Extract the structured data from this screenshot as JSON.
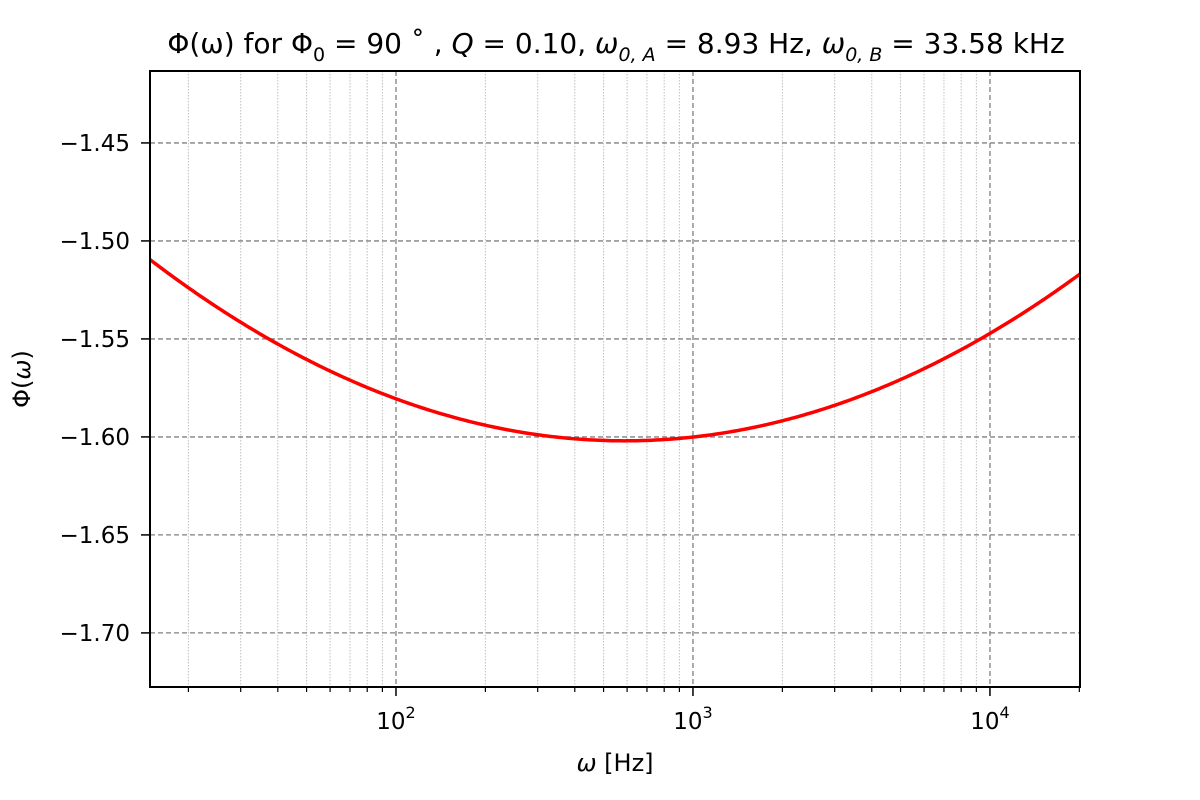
{
  "chart_data": {
    "type": "line",
    "title": "Φ(ω) for Φ₀ = 90°, Q = 0.10, ω₀,A = 8.93 Hz, ω₀,B = 33.58 kHz",
    "title_parts": {
      "lhs": "Φ(ω) for Φ",
      "phi0_sub": "0",
      "phi0_val": " = 90 ˚ , ",
      "q_label": "Q",
      "q_val": " = 0.10, ",
      "wA": "ω",
      "wA_sub": "0, A",
      "wA_val": " = 8.93 Hz, ",
      "wB": "ω",
      "wB_sub": "0, B",
      "wB_val": " = 33.58 kHz"
    },
    "xlabel": "ω [Hz]",
    "ylabel": "Φ(ω)",
    "xscale": "log",
    "xlim": [
      14.85,
      20100
    ],
    "ylim": [
      -1.7276,
      -1.4133
    ],
    "grid": true,
    "legend": null,
    "x_ticks": [
      {
        "value": 100,
        "base": "10",
        "exp": "2"
      },
      {
        "value": 1000,
        "base": "10",
        "exp": "3"
      },
      {
        "value": 10000,
        "base": "10",
        "exp": "4"
      }
    ],
    "y_ticks": [
      {
        "value": -1.45,
        "label": "−1.45"
      },
      {
        "value": -1.5,
        "label": "−1.50"
      },
      {
        "value": -1.55,
        "label": "−1.55"
      },
      {
        "value": -1.6,
        "label": "−1.60"
      },
      {
        "value": -1.65,
        "label": "−1.65"
      },
      {
        "value": -1.7,
        "label": "−1.70"
      }
    ],
    "series": [
      {
        "name": "Φ(ω)",
        "color": "#ff0000",
        "x": [
          14.85,
          20,
          30,
          50,
          70,
          100,
          150,
          200,
          300,
          400,
          548,
          700,
          1000,
          1500,
          2000,
          3000,
          5000,
          7000,
          10000,
          15000,
          20100
        ],
        "y": [
          -1.5117,
          -1.5234,
          -1.54,
          -1.559,
          -1.5702,
          -1.5812,
          -1.5906,
          -1.5956,
          -1.5995,
          -1.6006,
          -1.601,
          -1.6006,
          -1.5989,
          -1.5952,
          -1.5914,
          -1.5843,
          -1.5728,
          -1.5639,
          -1.5431,
          -1.5362,
          -1.5117
        ]
      }
    ]
  },
  "colors": {
    "line": "#ff0000",
    "major_grid": "#808080",
    "minor_grid": "#c0c0c0",
    "axes": "#000000"
  }
}
